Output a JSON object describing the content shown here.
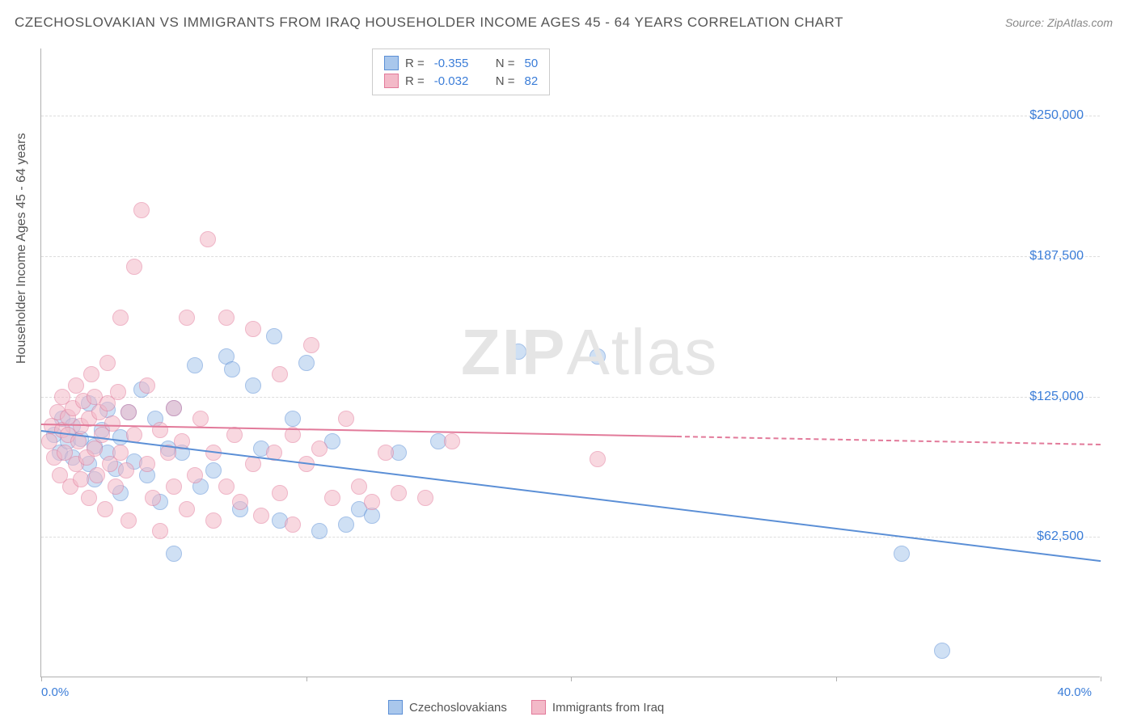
{
  "title": "CZECHOSLOVAKIAN VS IMMIGRANTS FROM IRAQ HOUSEHOLDER INCOME AGES 45 - 64 YEARS CORRELATION CHART",
  "source": "Source: ZipAtlas.com",
  "ylabel": "Householder Income Ages 45 - 64 years",
  "watermark_bold": "ZIP",
  "watermark_rest": "Atlas",
  "chart": {
    "type": "scatter",
    "xlim": [
      0,
      40
    ],
    "ylim": [
      0,
      280000
    ],
    "y_gridlines": [
      62500,
      125000,
      187500,
      250000
    ],
    "y_tick_labels": [
      "$62,500",
      "$125,000",
      "$187,500",
      "$250,000"
    ],
    "x_ticks": [
      0,
      10,
      20,
      30,
      40
    ],
    "x_tick_labels": {
      "0": "0.0%",
      "40": "40.0%"
    },
    "background_color": "#ffffff",
    "grid_color": "#dddddd",
    "axis_color": "#b0b0b0",
    "point_radius": 10,
    "point_opacity": 0.55,
    "series": [
      {
        "name": "Czechoslovakians",
        "fill": "#a9c7ec",
        "stroke": "#5b8fd6",
        "r": "-0.355",
        "n": "50",
        "trend": {
          "x1": 0,
          "y1": 110000,
          "x2": 40,
          "y2": 52000,
          "solid_until_x": 40
        },
        "points": [
          [
            0.5,
            108000
          ],
          [
            0.7,
            100000
          ],
          [
            0.8,
            115000
          ],
          [
            1.0,
            105000
          ],
          [
            1.2,
            98000
          ],
          [
            1.2,
            112000
          ],
          [
            1.5,
            106000
          ],
          [
            1.8,
            95000
          ],
          [
            1.8,
            122000
          ],
          [
            2.0,
            103000
          ],
          [
            2.0,
            88000
          ],
          [
            2.3,
            110000
          ],
          [
            2.5,
            100000
          ],
          [
            2.5,
            119000
          ],
          [
            2.8,
            93000
          ],
          [
            3.0,
            107000
          ],
          [
            3.0,
            82000
          ],
          [
            3.3,
            118000
          ],
          [
            3.5,
            96000
          ],
          [
            3.8,
            128000
          ],
          [
            4.0,
            90000
          ],
          [
            4.3,
            115000
          ],
          [
            4.5,
            78000
          ],
          [
            4.8,
            102000
          ],
          [
            5.0,
            120000
          ],
          [
            5.0,
            55000
          ],
          [
            5.3,
            100000
          ],
          [
            5.8,
            139000
          ],
          [
            6.0,
            85000
          ],
          [
            6.5,
            92000
          ],
          [
            7.0,
            143000
          ],
          [
            7.2,
            137000
          ],
          [
            7.5,
            75000
          ],
          [
            8.0,
            130000
          ],
          [
            8.3,
            102000
          ],
          [
            8.8,
            152000
          ],
          [
            9.0,
            70000
          ],
          [
            9.5,
            115000
          ],
          [
            10.0,
            140000
          ],
          [
            10.5,
            65000
          ],
          [
            11.0,
            105000
          ],
          [
            11.5,
            68000
          ],
          [
            12.0,
            75000
          ],
          [
            12.5,
            72000
          ],
          [
            13.5,
            100000
          ],
          [
            15.0,
            105000
          ],
          [
            18.0,
            145000
          ],
          [
            21.0,
            143000
          ],
          [
            32.5,
            55000
          ],
          [
            34.0,
            12000
          ]
        ]
      },
      {
        "name": "Immigrants from Iraq",
        "fill": "#f3b9c8",
        "stroke": "#e27a9a",
        "r": "-0.032",
        "n": "82",
        "trend": {
          "x1": 0,
          "y1": 113000,
          "x2": 40,
          "y2": 104000,
          "solid_until_x": 24
        },
        "points": [
          [
            0.3,
            105000
          ],
          [
            0.4,
            112000
          ],
          [
            0.5,
            98000
          ],
          [
            0.6,
            118000
          ],
          [
            0.7,
            90000
          ],
          [
            0.8,
            110000
          ],
          [
            0.8,
            125000
          ],
          [
            0.9,
            100000
          ],
          [
            1.0,
            108000
          ],
          [
            1.0,
            116000
          ],
          [
            1.1,
            85000
          ],
          [
            1.2,
            120000
          ],
          [
            1.3,
            95000
          ],
          [
            1.3,
            130000
          ],
          [
            1.4,
            105000
          ],
          [
            1.5,
            112000
          ],
          [
            1.5,
            88000
          ],
          [
            1.6,
            123000
          ],
          [
            1.7,
            98000
          ],
          [
            1.8,
            115000
          ],
          [
            1.8,
            80000
          ],
          [
            1.9,
            135000
          ],
          [
            2.0,
            102000
          ],
          [
            2.0,
            125000
          ],
          [
            2.1,
            90000
          ],
          [
            2.2,
            118000
          ],
          [
            2.3,
            108000
          ],
          [
            2.4,
            75000
          ],
          [
            2.5,
            122000
          ],
          [
            2.5,
            140000
          ],
          [
            2.6,
            95000
          ],
          [
            2.7,
            113000
          ],
          [
            2.8,
            85000
          ],
          [
            2.9,
            127000
          ],
          [
            3.0,
            100000
          ],
          [
            3.0,
            160000
          ],
          [
            3.2,
            92000
          ],
          [
            3.3,
            118000
          ],
          [
            3.3,
            70000
          ],
          [
            3.5,
            108000
          ],
          [
            3.5,
            183000
          ],
          [
            3.8,
            208000
          ],
          [
            4.0,
            95000
          ],
          [
            4.0,
            130000
          ],
          [
            4.2,
            80000
          ],
          [
            4.5,
            110000
          ],
          [
            4.5,
            65000
          ],
          [
            4.8,
            100000
          ],
          [
            5.0,
            120000
          ],
          [
            5.0,
            85000
          ],
          [
            5.3,
            105000
          ],
          [
            5.5,
            75000
          ],
          [
            5.5,
            160000
          ],
          [
            5.8,
            90000
          ],
          [
            6.0,
            115000
          ],
          [
            6.3,
            195000
          ],
          [
            6.5,
            100000
          ],
          [
            6.5,
            70000
          ],
          [
            7.0,
            160000
          ],
          [
            7.0,
            85000
          ],
          [
            7.3,
            108000
          ],
          [
            7.5,
            78000
          ],
          [
            8.0,
            95000
          ],
          [
            8.0,
            155000
          ],
          [
            8.3,
            72000
          ],
          [
            8.8,
            100000
          ],
          [
            9.0,
            135000
          ],
          [
            9.0,
            82000
          ],
          [
            9.5,
            108000
          ],
          [
            9.5,
            68000
          ],
          [
            10.0,
            95000
          ],
          [
            10.2,
            148000
          ],
          [
            10.5,
            102000
          ],
          [
            11.0,
            80000
          ],
          [
            11.5,
            115000
          ],
          [
            12.0,
            85000
          ],
          [
            12.5,
            78000
          ],
          [
            13.0,
            100000
          ],
          [
            13.5,
            82000
          ],
          [
            14.5,
            80000
          ],
          [
            15.5,
            105000
          ],
          [
            21.0,
            97000
          ]
        ]
      }
    ]
  },
  "legend_labels": {
    "r_prefix": "R =",
    "n_prefix": "N ="
  }
}
